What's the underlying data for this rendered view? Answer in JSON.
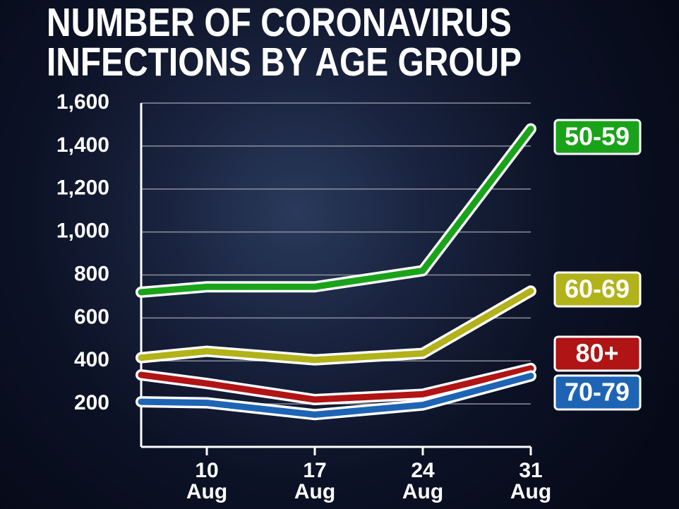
{
  "chart_data": {
    "type": "line",
    "title": "NUMBER OF CORONAVIRUS INFECTIONS BY AGE GROUP",
    "categories": [
      null,
      "10 Aug",
      "17 Aug",
      "24 Aug",
      "31 Aug"
    ],
    "series": [
      {
        "name": "50-59",
        "color": "#1aa31a",
        "values": [
          720,
          745,
          745,
          820,
          1480
        ]
      },
      {
        "name": "60-69",
        "color": "#b2b21a",
        "values": [
          415,
          445,
          405,
          435,
          725
        ]
      },
      {
        "name": "80+",
        "color": "#b01414",
        "values": [
          335,
          295,
          220,
          245,
          365
        ]
      },
      {
        "name": "70-79",
        "color": "#1e64b4",
        "values": [
          210,
          205,
          150,
          195,
          330
        ]
      }
    ],
    "ylim": [
      0,
      1600
    ],
    "yticks": [
      {
        "value": 200,
        "label": "200"
      },
      {
        "value": 400,
        "label": "400"
      },
      {
        "value": 600,
        "label": "600"
      },
      {
        "value": 800,
        "label": "800"
      },
      {
        "value": 1000,
        "label": "1,000"
      },
      {
        "value": 1200,
        "label": "1,200"
      },
      {
        "value": 1400,
        "label": "1,400"
      },
      {
        "value": 1600,
        "label": "1,600"
      }
    ],
    "grid": true
  }
}
